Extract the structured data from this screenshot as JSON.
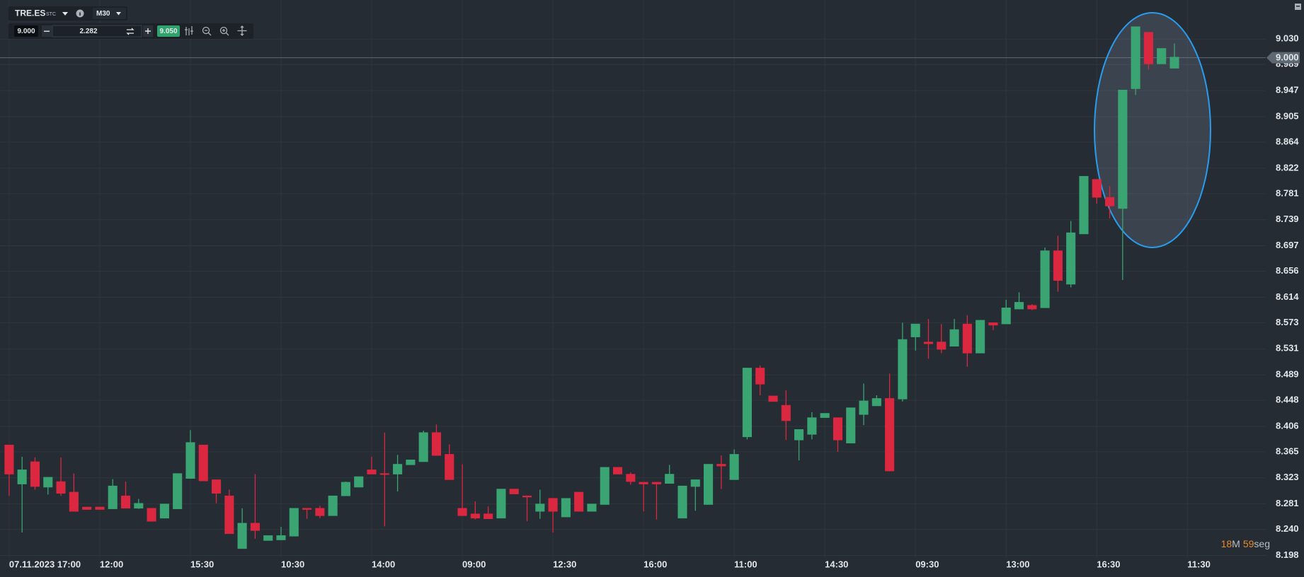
{
  "toolbar": {
    "symbol": "TRE.ES",
    "market": "STC",
    "timeframe": "M30",
    "bid": "9.000",
    "quantity": "2.282",
    "ask": "9.050"
  },
  "chart_data": {
    "type": "candlestick",
    "categories": [
      "07.11.2023 17:00",
      null,
      null,
      null,
      null,
      null,
      null,
      "12:00",
      null,
      null,
      null,
      null,
      null,
      null,
      "15:30",
      null,
      null,
      null,
      null,
      null,
      null,
      "10:30",
      null,
      null,
      null,
      null,
      null,
      null,
      "14:00",
      null,
      null,
      null,
      null,
      null,
      null,
      "09:00",
      null,
      null,
      null,
      null,
      null,
      null,
      "12:30",
      null,
      null,
      null,
      null,
      null,
      null,
      "16:00",
      null,
      null,
      null,
      null,
      null,
      null,
      "11:00",
      null,
      null,
      null,
      null,
      null,
      null,
      "14:30",
      null,
      null,
      null,
      null,
      null,
      null,
      "09:30",
      null,
      null,
      null,
      null,
      null,
      null,
      "13:00",
      null,
      null,
      null,
      null,
      null,
      null,
      "16:30",
      null,
      null,
      null,
      null,
      null,
      null,
      "11:30"
    ],
    "open": [
      8.376,
      8.313,
      8.349,
      8.308,
      8.317,
      8.3,
      8.276,
      8.276,
      8.273,
      8.294,
      8.274,
      8.274,
      8.258,
      8.273,
      8.322,
      8.376,
      8.32,
      8.294,
      8.209,
      8.25,
      8.222,
      8.223,
      8.229,
      8.274,
      8.274,
      8.262,
      8.294,
      8.308,
      8.336,
      8.33,
      8.329,
      8.344,
      8.349,
      8.396,
      8.361,
      8.274,
      8.265,
      8.265,
      8.258,
      8.305,
      8.294,
      8.269,
      8.29,
      8.26,
      8.3,
      8.269,
      8.28,
      8.34,
      8.329,
      8.316,
      8.316,
      8.314,
      8.258,
      8.309,
      8.28,
      8.345,
      8.32,
      8.389,
      8.5,
      8.455,
      8.44,
      8.384,
      8.393,
      8.42,
      8.42,
      8.379,
      8.425,
      8.439,
      8.451,
      8.45,
      8.55,
      8.542,
      8.542,
      8.535,
      8.571,
      8.524,
      8.573,
      8.571,
      8.595,
      8.601,
      8.597,
      8.689,
      8.635,
      8.716,
      8.804,
      8.775,
      8.757,
      8.95,
      9.041,
      8.99,
      8.983,
      null
    ],
    "high": [
      8.376,
      8.357,
      8.356,
      8.324,
      8.356,
      8.33,
      8.276,
      8.276,
      8.321,
      8.317,
      8.289,
      8.274,
      8.281,
      8.33,
      8.4,
      8.376,
      8.32,
      8.304,
      8.274,
      8.329,
      8.23,
      8.244,
      8.274,
      8.274,
      8.278,
      8.294,
      8.317,
      8.325,
      8.357,
      8.396,
      8.36,
      8.352,
      8.399,
      8.409,
      8.377,
      8.345,
      8.285,
      8.277,
      8.305,
      8.305,
      8.294,
      8.304,
      8.29,
      8.29,
      8.3,
      8.281,
      8.34,
      8.34,
      8.332,
      8.316,
      8.316,
      8.344,
      8.31,
      8.32,
      8.345,
      8.359,
      8.369,
      8.5,
      8.504,
      8.455,
      8.464,
      8.401,
      8.429,
      8.427,
      8.42,
      8.436,
      8.475,
      8.456,
      8.491,
      8.573,
      8.571,
      8.579,
      8.571,
      8.579,
      8.585,
      8.577,
      8.573,
      8.61,
      8.622,
      8.603,
      8.694,
      8.713,
      8.737,
      8.809,
      8.804,
      8.793,
      8.948,
      9.05,
      9.041,
      9.015,
      9.023,
      null
    ],
    "low": [
      8.294,
      8.235,
      8.304,
      8.296,
      8.294,
      8.269,
      8.272,
      8.272,
      8.273,
      8.274,
      8.273,
      8.253,
      8.258,
      8.273,
      8.322,
      8.318,
      8.282,
      8.233,
      8.209,
      8.225,
      8.222,
      8.223,
      8.229,
      8.257,
      8.258,
      8.262,
      8.294,
      8.308,
      8.329,
      8.245,
      8.301,
      8.344,
      8.349,
      8.359,
      8.32,
      8.262,
      8.256,
      8.257,
      8.258,
      8.297,
      8.253,
      8.257,
      8.235,
      8.26,
      8.269,
      8.269,
      8.28,
      8.329,
      8.312,
      8.269,
      8.256,
      8.314,
      8.258,
      8.27,
      8.28,
      8.305,
      8.32,
      8.385,
      8.456,
      8.446,
      8.384,
      8.351,
      8.385,
      8.42,
      8.365,
      8.379,
      8.408,
      8.439,
      8.334,
      8.446,
      8.528,
      8.515,
      8.524,
      8.535,
      8.502,
      8.524,
      8.561,
      8.571,
      8.595,
      8.593,
      8.597,
      8.623,
      8.63,
      8.716,
      8.765,
      8.741,
      8.642,
      8.94,
      8.981,
      8.99,
      8.983,
      null
    ],
    "close": [
      8.329,
      8.336,
      8.309,
      8.324,
      8.298,
      8.269,
      8.272,
      8.272,
      8.31,
      8.274,
      8.282,
      8.253,
      8.281,
      8.33,
      8.38,
      8.318,
      8.298,
      8.233,
      8.25,
      8.238,
      8.23,
      8.23,
      8.274,
      8.272,
      8.262,
      8.294,
      8.316,
      8.325,
      8.329,
      8.329,
      8.345,
      8.352,
      8.396,
      8.359,
      8.32,
      8.262,
      8.258,
      8.257,
      8.305,
      8.297,
      8.292,
      8.281,
      8.269,
      8.29,
      8.269,
      8.281,
      8.34,
      8.329,
      8.317,
      8.313,
      8.313,
      8.329,
      8.31,
      8.32,
      8.345,
      8.342,
      8.361,
      8.5,
      8.474,
      8.446,
      8.415,
      8.401,
      8.42,
      8.427,
      8.384,
      8.436,
      8.447,
      8.451,
      8.334,
      8.546,
      8.571,
      8.539,
      8.53,
      8.562,
      8.524,
      8.577,
      8.569,
      8.597,
      8.606,
      8.595,
      8.689,
      8.641,
      8.718,
      8.809,
      8.775,
      8.761,
      8.948,
      9.05,
      8.99,
      9.015,
      9.001,
      null
    ],
    "up_color": "#3aa473",
    "down_color": "#dc2740",
    "ylim": [
      8.194,
      9.093
    ],
    "yticks": [
      {
        "value": 9.03,
        "label": "9.030"
      },
      8.989,
      8.947,
      8.905,
      8.864,
      8.822,
      8.781,
      8.739,
      8.697,
      8.656,
      8.614,
      8.573,
      8.531,
      8.489,
      8.448,
      8.406,
      8.365,
      8.323,
      8.281,
      {
        "value": 8.24,
        "label": "8.240"
      },
      8.198
    ],
    "grid": true,
    "price_line": {
      "value": 9.0,
      "label": "9.000"
    }
  },
  "countdown": {
    "minutes": "18",
    "minutes_unit": "M",
    "seconds": "59",
    "seconds_unit": "seg"
  }
}
